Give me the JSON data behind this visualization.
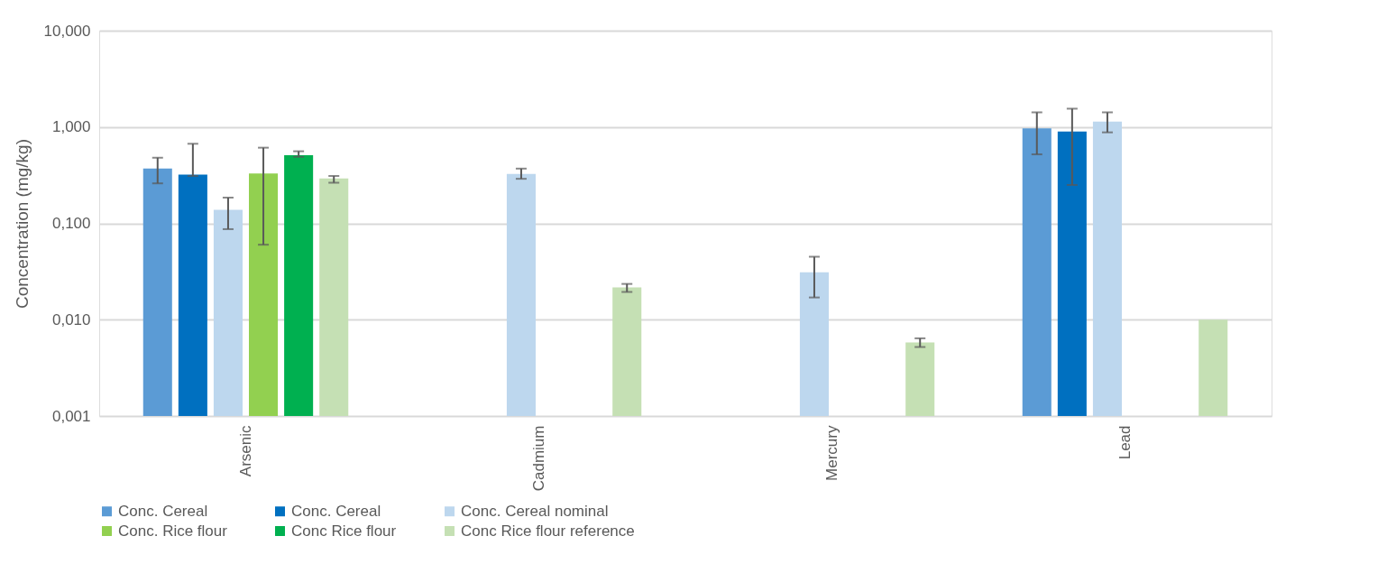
{
  "chart_data": {
    "type": "bar",
    "ylabel": "Concentration (mg/kg)",
    "categories": [
      "Arsenic",
      "Cadmium",
      "Mercury",
      "Lead"
    ],
    "log": true,
    "ylim": [
      0.001,
      10
    ],
    "yticks": [
      {
        "value": 0.001,
        "label": "0,001"
      },
      {
        "value": 0.01,
        "label": "0,010"
      },
      {
        "value": 0.1,
        "label": "0,100"
      },
      {
        "value": 1,
        "label": "1,000"
      },
      {
        "value": 10,
        "label": "10,000"
      }
    ],
    "grid": "y",
    "legend": "bottom",
    "series": [
      {
        "name": "Conc. Cereal",
        "color": "#5b9bd5",
        "values": [
          0.37,
          null,
          null,
          0.97
        ],
        "errors": [
          [
            0.26,
            0.48
          ],
          null,
          null,
          [
            0.52,
            1.42
          ]
        ]
      },
      {
        "name": "Conc. Cereal",
        "color": "#0070c0",
        "values": [
          0.32,
          null,
          null,
          0.9
        ],
        "errors": [
          [
            0.31,
            0.67
          ],
          null,
          null,
          [
            0.25,
            1.55
          ]
        ]
      },
      {
        "name": "Conc. Cereal nominal",
        "color": "#bdd7ee",
        "values": [
          0.138,
          0.325,
          0.031,
          1.14
        ],
        "errors": [
          [
            0.087,
            0.185
          ],
          [
            0.29,
            0.37
          ],
          [
            0.017,
            0.045
          ],
          [
            0.88,
            1.42
          ]
        ]
      },
      {
        "name": "Conc. Rice flour",
        "color": "#92d050",
        "values": [
          0.33,
          null,
          null,
          null
        ],
        "errors": [
          [
            0.06,
            0.61
          ],
          null,
          null,
          null
        ]
      },
      {
        "name": "Conc Rice flour",
        "color": "#00b050",
        "values": [
          0.51,
          null,
          null,
          null
        ],
        "errors": [
          [
            0.49,
            0.56
          ],
          null,
          null,
          null
        ]
      },
      {
        "name": "Conc Rice flour reference",
        "color": "#c5e0b4",
        "values": [
          0.292,
          0.0216,
          0.0058,
          0.01
        ],
        "errors": [
          [
            0.264,
            0.31
          ],
          [
            0.0194,
            0.0235
          ],
          [
            0.0052,
            0.0064
          ],
          null
        ]
      }
    ]
  }
}
